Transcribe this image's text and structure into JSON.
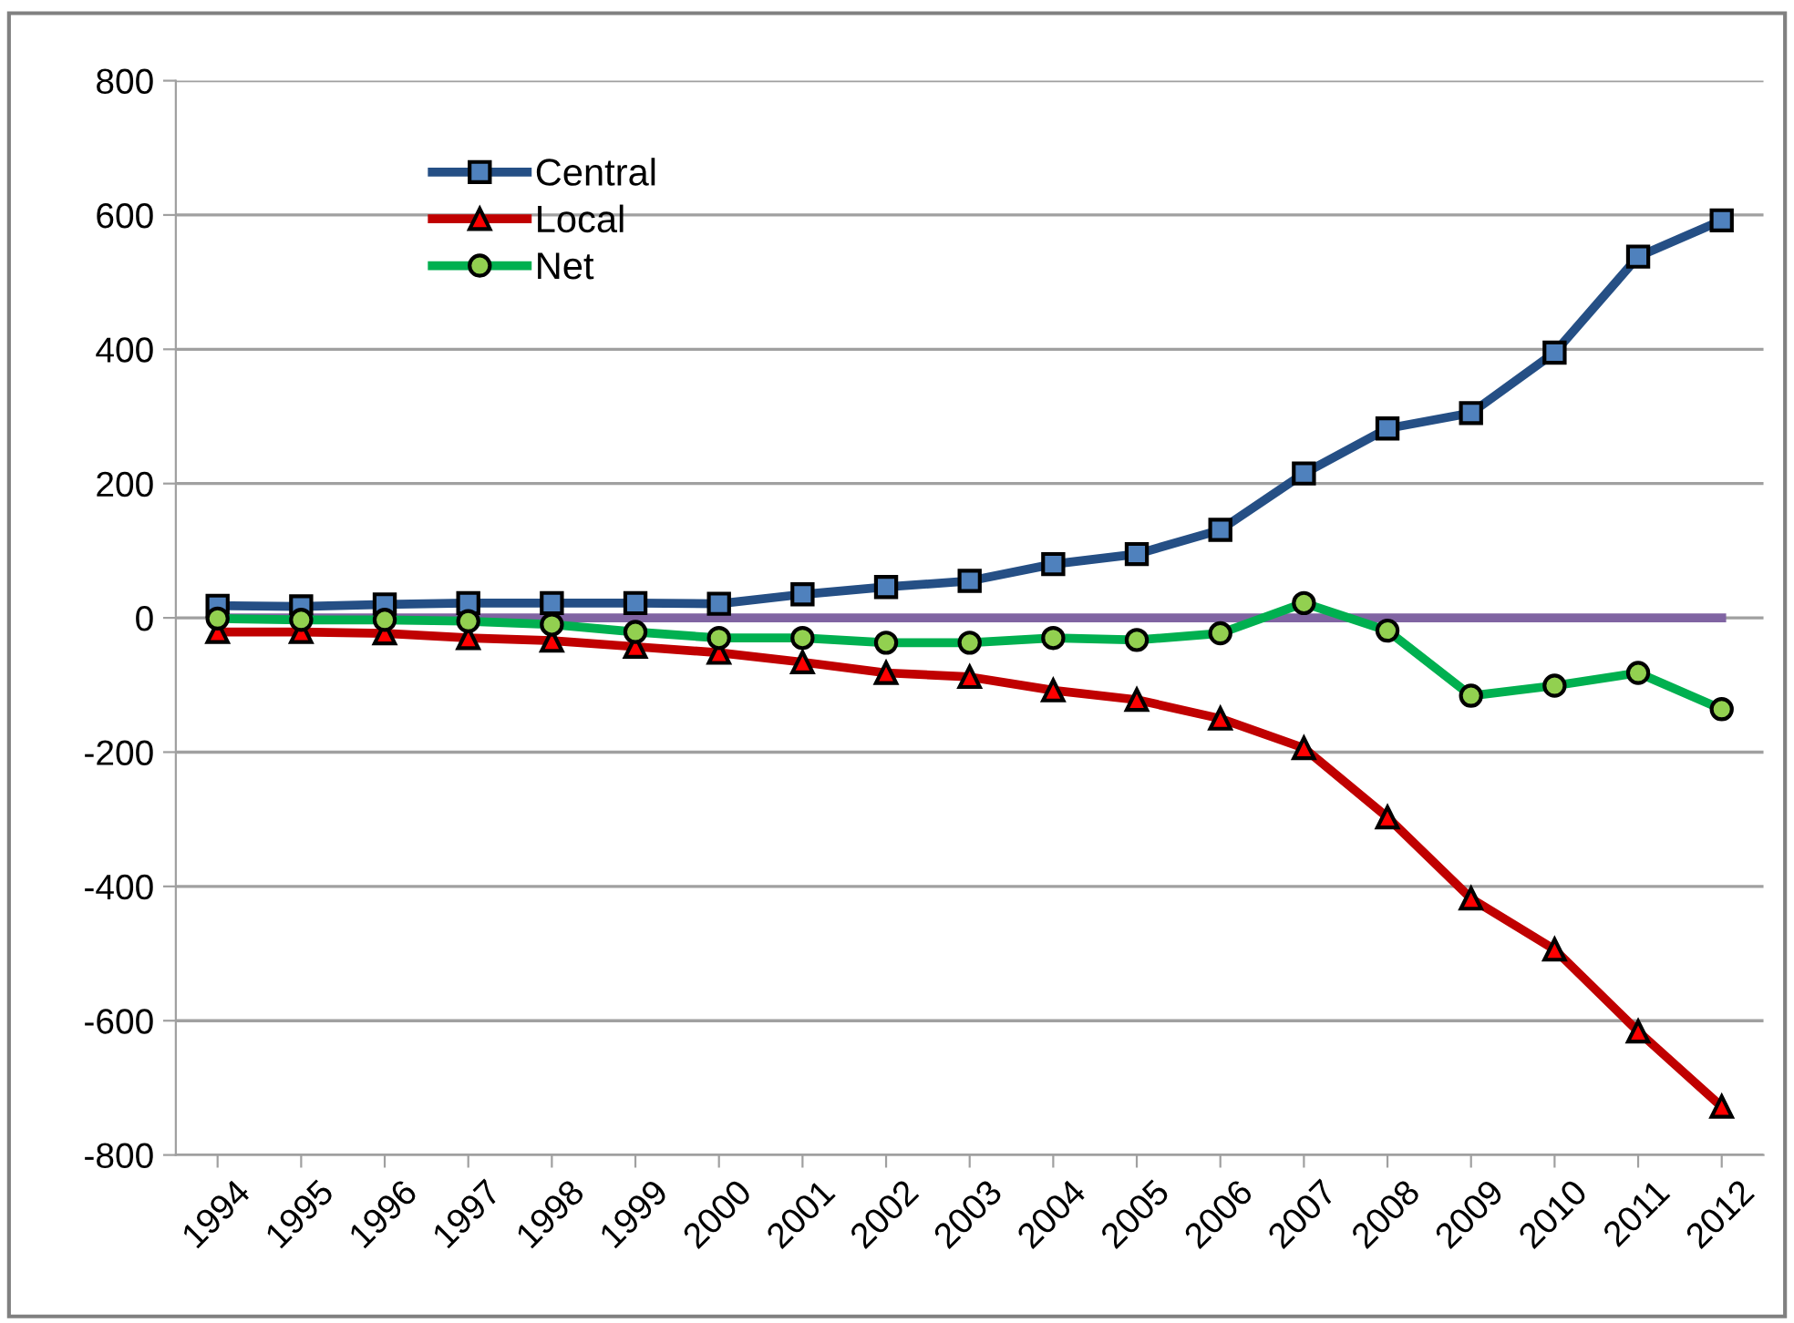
{
  "chart_data": {
    "type": "line",
    "categories": [
      "1994",
      "1995",
      "1996",
      "1997",
      "1998",
      "1999",
      "2000",
      "2001",
      "2002",
      "2003",
      "2004",
      "2005",
      "2006",
      "2007",
      "2008",
      "2009",
      "2010",
      "2011",
      "2012"
    ],
    "series": [
      {
        "name": "Central",
        "color": "#254f85",
        "marker": "square",
        "values": [
          18,
          17,
          20,
          22,
          22,
          22,
          21,
          35,
          46,
          55,
          80,
          95,
          131,
          215,
          282,
          305,
          395,
          538,
          592
        ]
      },
      {
        "name": "Local",
        "color": "#c00000",
        "marker": "triangle",
        "values": [
          -21,
          -21,
          -23,
          -30,
          -34,
          -43,
          -52,
          -66,
          -82,
          -88,
          -108,
          -122,
          -150,
          -194,
          -297,
          -418,
          -494,
          -616,
          -728
        ]
      },
      {
        "name": "Net",
        "color": "#00b050",
        "marker": "circle",
        "values": [
          -1,
          -3,
          -3,
          -5,
          -10,
          -21,
          -30,
          -30,
          -37,
          -37,
          -30,
          -33,
          -23,
          22,
          -19,
          -116,
          -101,
          -82,
          -136
        ]
      },
      {
        "color": "#8064a2",
        "marker": "none",
        "values": [
          0,
          0,
          0,
          0,
          0,
          0,
          0,
          0,
          0,
          0,
          0,
          0,
          0,
          0,
          0,
          0,
          0,
          0,
          0
        ]
      }
    ],
    "ylim": [
      -800,
      800
    ],
    "yticks": [
      -800,
      -600,
      -400,
      -200,
      0,
      200,
      400,
      600,
      800
    ],
    "grid": "y",
    "legend": "top left"
  }
}
